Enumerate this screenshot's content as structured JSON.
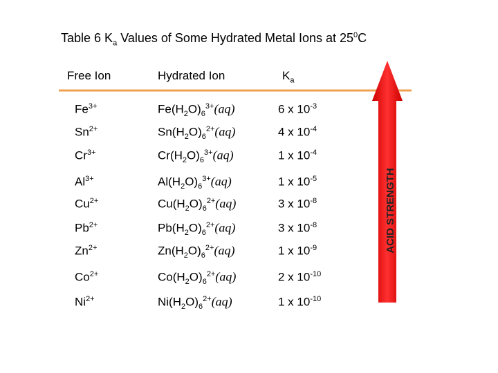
{
  "title": [
    "Table 6   K",
    "a",
    " Values of Some Hydrated Metal Ions at 25",
    "0",
    "C"
  ],
  "headers": {
    "free_ion": "Free Ion",
    "hydrated_ion": "Hydrated Ion",
    "ka": [
      "K",
      "a"
    ]
  },
  "rows": [
    {
      "ion": [
        "Fe",
        "3+"
      ],
      "hydrated": [
        "Fe(H",
        "2",
        "O)",
        "6",
        "3+",
        "(aq)"
      ],
      "ka": [
        "6 x 10",
        "-3"
      ]
    },
    {
      "ion": [
        "Sn",
        "2+"
      ],
      "hydrated": [
        "Sn(H",
        "2",
        "O)",
        "6",
        "2+",
        "(aq)"
      ],
      "ka": [
        "4 x 10",
        "-4"
      ]
    },
    {
      "ion": [
        "Cr",
        "3+"
      ],
      "hydrated": [
        "Cr(H",
        "2",
        "O)",
        "6",
        "3+",
        "(aq)"
      ],
      "ka": [
        "1 x 10",
        "-4"
      ]
    },
    {
      "ion": [
        "Al",
        "3+"
      ],
      "hydrated": [
        "Al(H",
        "2",
        "O)",
        "6",
        "3+",
        "(aq)"
      ],
      "ka": [
        "1 x 10",
        "-5"
      ]
    },
    {
      "ion": [
        "Cu",
        "2+"
      ],
      "hydrated": [
        "Cu(H",
        "2",
        "O)",
        "6",
        "2+",
        "(aq)"
      ],
      "ka": [
        "3 x 10",
        "-8"
      ]
    },
    {
      "ion": [
        "Pb",
        "2+"
      ],
      "hydrated": [
        "Pb(H",
        "2",
        "O)",
        "6",
        "2+",
        "(aq)"
      ],
      "ka": [
        "3 x 10",
        "-8"
      ]
    },
    {
      "ion": [
        "Zn",
        "2+"
      ],
      "hydrated": [
        "Zn(H",
        "2",
        "O)",
        "6",
        "2+",
        "(aq)"
      ],
      "ka": [
        "1 x 10",
        "-9"
      ]
    },
    {
      "ion": [
        "Co",
        "2+"
      ],
      "hydrated": [
        "Co(H",
        "2",
        "O)",
        "6",
        "2+",
        "(aq)"
      ],
      "ka": [
        "2 x 10",
        "-10"
      ]
    },
    {
      "ion": [
        "Ni",
        "2+"
      ],
      "hydrated": [
        "Ni(H",
        "2",
        "O)",
        "6",
        "2+",
        "(aq)"
      ],
      "ka": [
        "1 x 10",
        "-10"
      ]
    }
  ],
  "arrow_label": "ACID STRENGTH"
}
